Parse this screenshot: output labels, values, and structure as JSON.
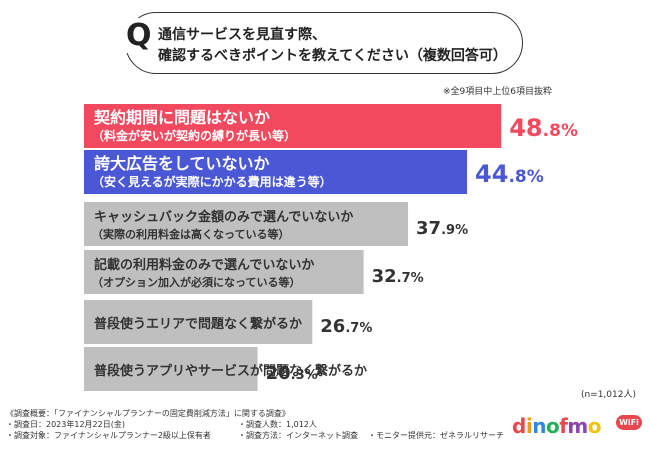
{
  "question": {
    "mark": "Q",
    "line1": "通信サービスを見直す際、",
    "line2": "確認するべきポイントを教えてください（複数回答可）"
  },
  "note": "※全9項目中上位6項目抜粋",
  "n_label": "(n=1,012人)",
  "chart_data": {
    "type": "bar",
    "orientation": "horizontal",
    "unit": "%",
    "xlim": [
      0,
      100
    ],
    "categories": [
      {
        "label": "契約期間に問題はないか",
        "sub": "（料金が安いが契約の縛りが長い等）",
        "value": 48.8,
        "color": "#f2495e"
      },
      {
        "label": "誇大広告をしていないか",
        "sub": "（安く見えるが実際にかかる費用は違う等）",
        "value": 44.8,
        "color": "#4a58d6"
      },
      {
        "label": "キャッシュバック金額のみで選んでいないか",
        "sub": "（実際の利用料金は高くなっている等）",
        "value": 37.9,
        "color": "#bfbfbf"
      },
      {
        "label": "記載の利用料金のみで選んでいないか",
        "sub": "（オプション加入が必須になっている等）",
        "value": 32.7,
        "color": "#bfbfbf"
      },
      {
        "label": "普段使うエリアで問題なく繋がるか",
        "sub": "",
        "value": 26.7,
        "color": "#bfbfbf"
      },
      {
        "label": "普段使うアプリやサービスが問題なく繋がるか",
        "sub": "",
        "value": 20.3,
        "color": "#bfbfbf"
      }
    ],
    "highlight_value_colors": [
      "#f2495e",
      "#4a58d6",
      "#333333",
      "#333333",
      "#333333",
      "#333333"
    ]
  },
  "survey": {
    "title": "《調査概要：「ファイナンシャルプランナーの固定費削減方法」に関する調査》",
    "date": "・調査日：2023年12月22日(金)",
    "count": "・調査人数：1,012人",
    "target": "・調査対象：ファイナンシャルプランナー2級以上保有者",
    "method": "・調査方法：インターネット調査",
    "provider": "・モニター提供元：ゼネラルリサーチ"
  },
  "logo": {
    "letters": [
      "d",
      "i",
      "n",
      "o",
      "f",
      "m",
      "o"
    ],
    "colors": [
      "#e8474f",
      "#f39c12",
      "#2e86de",
      "#27ae60",
      "#e8474f",
      "#8e44ad",
      "#f1c40f"
    ],
    "badge": "WiFi"
  }
}
